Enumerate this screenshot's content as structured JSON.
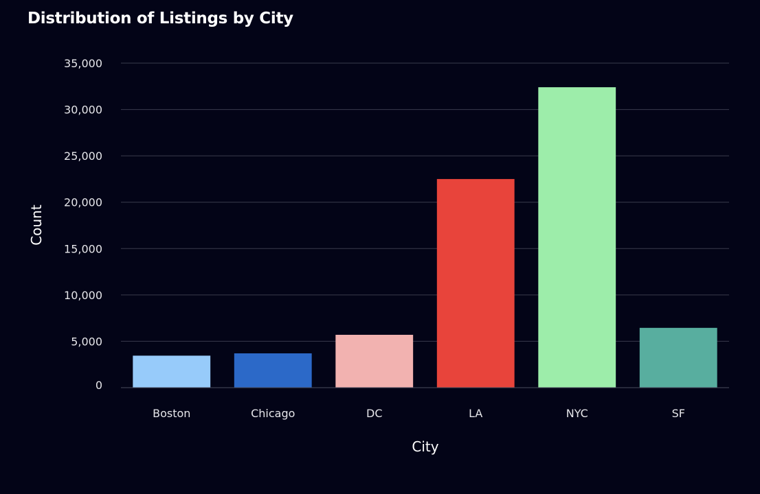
{
  "title": "Distribution of Listings by City",
  "chart_data": {
    "type": "bar",
    "title": "Distribution of Listings by City",
    "xlabel": "City",
    "ylabel": "Count",
    "categories": [
      "Boston",
      "Chicago",
      "DC",
      "LA",
      "NYC",
      "SF"
    ],
    "values": [
      3450,
      3700,
      5700,
      22500,
      32400,
      6450
    ],
    "colors": [
      "#97cbfa",
      "#2c69c8",
      "#f2b2b0",
      "#e8443b",
      "#9dedaa",
      "#58ae9f"
    ],
    "ylim": [
      0,
      35000
    ],
    "yticks": [
      0,
      5000,
      10000,
      15000,
      20000,
      25000,
      30000,
      35000
    ],
    "ytick_labels": [
      "0",
      "5,000",
      "10,000",
      "15,000",
      "20,000",
      "25,000",
      "30,000",
      "35,000"
    ],
    "grid": true,
    "legend": "none"
  }
}
